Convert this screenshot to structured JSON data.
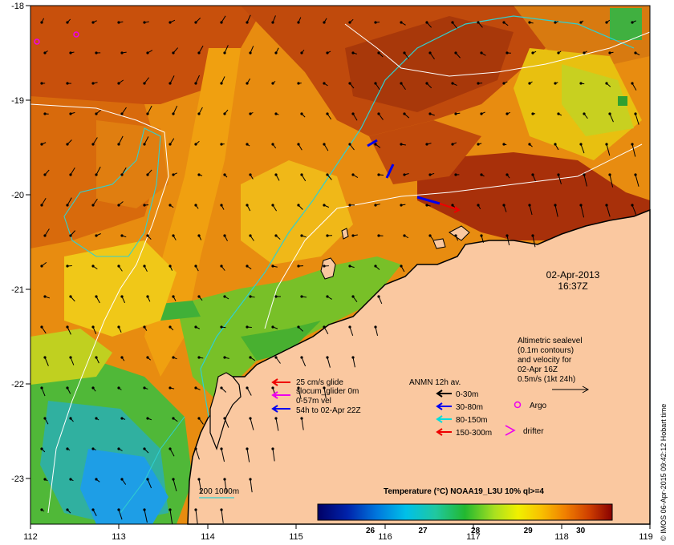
{
  "map": {
    "date_line": "02-Apr-2013",
    "time_line": "16:37Z",
    "credit": "© IMOS 06-Apr-2015 09:42:12 Hobart time",
    "x_ticks": [
      "112",
      "113",
      "114",
      "115",
      "116",
      "117",
      "118",
      "119"
    ],
    "y_ticks": [
      "-18",
      "-19",
      "-20",
      "-21",
      "-22",
      "-23"
    ]
  },
  "glider_legend": {
    "line1": "25 cm/s glide",
    "line2": "slocum_glider 0m",
    "line3": "0-57m vel",
    "line4": "54h to 02-Apr 22Z"
  },
  "anmn_legend": {
    "title": "ANMN 12h av.",
    "items": [
      "0-30m",
      "30-80m",
      "80-150m",
      "150-300m"
    ],
    "colors": [
      "#000000",
      "#0000ee",
      "#00dddd",
      "#ee0000"
    ]
  },
  "altimetry_legend": {
    "line1": "Altimetric sealevel",
    "line2": "(0.1m contours)",
    "line3": "and velocity for",
    "line4": "02-Apr 16Z",
    "line5": "0.5m/s (1kt 24h)"
  },
  "markers": {
    "argo": "Argo",
    "drifter": "drifter"
  },
  "isobath_label": "200  1000m",
  "colorbar": {
    "title": "Temperature (°C) NOAA19_L3U 10% ql>=4",
    "tick_labels": [
      "26",
      "27",
      "28",
      "29",
      "30"
    ],
    "range": [
      25.0,
      30.6
    ]
  },
  "colors": {
    "land": "#fac8a0",
    "warm": "#b8320a",
    "cool": "#1e9ee6"
  }
}
